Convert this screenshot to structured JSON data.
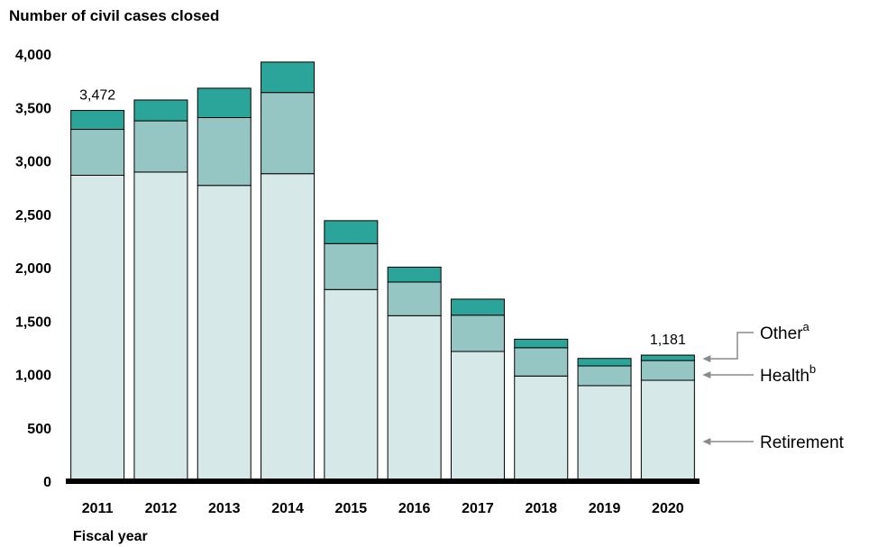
{
  "chart_data": {
    "type": "bar",
    "stacked": true,
    "ylabel": "Number of civil cases closed",
    "xlabel": "Fiscal year",
    "ylim": [
      0,
      4000
    ],
    "yticks": [
      0,
      500,
      1000,
      1500,
      2000,
      2500,
      3000,
      3500,
      4000
    ],
    "ytick_labels": [
      "0",
      "500",
      "1,000",
      "1,500",
      "2,000",
      "2,500",
      "3,000",
      "3,500",
      "4,000"
    ],
    "categories": [
      "2011",
      "2012",
      "2013",
      "2014",
      "2015",
      "2016",
      "2017",
      "2018",
      "2019",
      "2020"
    ],
    "series": [
      {
        "name": "Retirement",
        "color": "#d6e8e7",
        "values": [
          2865,
          2895,
          2770,
          2880,
          1795,
          1550,
          1215,
          985,
          895,
          945
        ]
      },
      {
        "name": "Health",
        "sup": "b",
        "color": "#96c6c3",
        "values": [
          430,
          480,
          635,
          760,
          430,
          315,
          340,
          265,
          185,
          185
        ]
      },
      {
        "name": "Other",
        "sup": "a",
        "color": "#2ba49a",
        "values": [
          177,
          195,
          275,
          285,
          215,
          140,
          150,
          80,
          70,
          51
        ]
      }
    ],
    "data_labels": [
      {
        "category": "2011",
        "text": "3,472"
      },
      {
        "category": "2020",
        "text": "1,181"
      }
    ],
    "grid": false,
    "legend": "right"
  }
}
